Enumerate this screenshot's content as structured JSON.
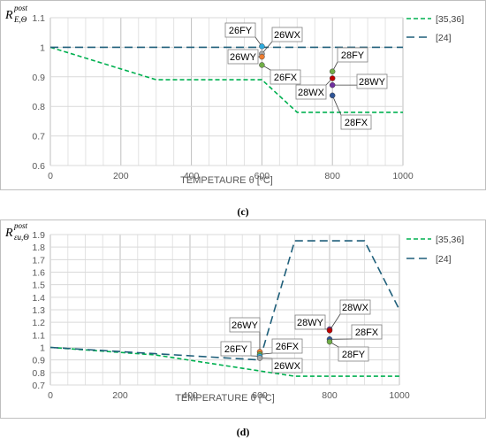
{
  "chart_data": [
    {
      "type": "line",
      "panel": "(c)",
      "ylabel": {
        "main": "R",
        "sup": "post",
        "sub": "E,Θ"
      },
      "xlabel": "TEMPETAURE θ [ºC]",
      "xlim": [
        0,
        1000
      ],
      "ylim": [
        0.6,
        1.1
      ],
      "xticks": [
        0,
        200,
        400,
        600,
        800,
        1000
      ],
      "yticks": [
        0.6,
        0.7,
        0.8,
        0.9,
        1,
        1.1
      ],
      "ytick_labels": [
        "0.6",
        "0.7",
        "0.8",
        "0.9",
        "1",
        "1.1"
      ],
      "series": [
        {
          "name": "[35,36]",
          "color": "#00b050",
          "dash": "green-short",
          "points": [
            [
              0,
              1.0
            ],
            [
              300,
              0.89
            ],
            [
              600,
              0.89
            ],
            [
              700,
              0.78
            ],
            [
              1000,
              0.78
            ]
          ]
        },
        {
          "name": "[24]",
          "color": "#1f5f7a",
          "dash": "blue-long",
          "points": [
            [
              0,
              1.0
            ],
            [
              1000,
              1.0
            ]
          ]
        }
      ],
      "markers": [
        {
          "label": "26FY",
          "x": 600,
          "y": 1.003,
          "color": "#2eaadc"
        },
        {
          "label": "26WX",
          "x": 600,
          "y": 0.978,
          "color": "#a5a5a5"
        },
        {
          "label": "26WY",
          "x": 600,
          "y": 0.968,
          "color": "#ed7d31"
        },
        {
          "label": "26FX",
          "x": 600,
          "y": 0.94,
          "color": "#70ad47"
        },
        {
          "label": "28FY",
          "x": 800,
          "y": 0.918,
          "color": "#70ad47"
        },
        {
          "label": "28WX",
          "x": 800,
          "y": 0.895,
          "color": "#c00000"
        },
        {
          "label": "28WY",
          "x": 800,
          "y": 0.872,
          "color": "#7030a0"
        },
        {
          "label": "28FX",
          "x": 800,
          "y": 0.837,
          "color": "#2f5597"
        }
      ],
      "legend_position": "right",
      "grid": true
    },
    {
      "type": "line",
      "panel": "(d)",
      "ylabel": {
        "main": "R",
        "sup": "post",
        "sub": "εu,Θ"
      },
      "xlabel": "TEMPERATURE θ [ºC]",
      "xlim": [
        0,
        1000
      ],
      "ylim": [
        0.7,
        1.9
      ],
      "xticks": [
        0,
        200,
        400,
        600,
        800,
        1000
      ],
      "yticks": [
        0.7,
        0.8,
        0.9,
        1,
        1.1,
        1.2,
        1.3,
        1.4,
        1.5,
        1.6,
        1.7,
        1.8,
        1.9
      ],
      "ytick_labels": [
        "0.7",
        "0.8",
        "0.9",
        "1",
        "1.1",
        "1.2",
        "1.3",
        "1.4",
        "1.5",
        "1.6",
        "1.7",
        "1.8",
        "1.9"
      ],
      "series": [
        {
          "name": "[35,36]",
          "color": "#00b050",
          "dash": "green-short",
          "points": [
            [
              0,
              1.0
            ],
            [
              300,
              0.94
            ],
            [
              700,
              0.77
            ],
            [
              1000,
              0.77
            ]
          ]
        },
        {
          "name": "[24]",
          "color": "#1f5f7a",
          "dash": "blue-long",
          "points": [
            [
              0,
              1.0
            ],
            [
              300,
              0.95
            ],
            [
              600,
              0.9
            ],
            [
              700,
              1.85
            ],
            [
              900,
              1.85
            ],
            [
              1000,
              1.3
            ]
          ]
        }
      ],
      "markers": [
        {
          "label": "26WY",
          "x": 600,
          "y": 0.965,
          "color": "#ed7d31"
        },
        {
          "label": "26FX",
          "x": 600,
          "y": 0.945,
          "color": "#70ad47"
        },
        {
          "label": "26FY",
          "x": 600,
          "y": 0.93,
          "color": "#2eaadc"
        },
        {
          "label": "26WX",
          "x": 600,
          "y": 0.915,
          "color": "#a5a5a5"
        },
        {
          "label": "28WY",
          "x": 800,
          "y": 1.145,
          "color": "#7030a0"
        },
        {
          "label": "28WX",
          "x": 800,
          "y": 1.135,
          "color": "#c00000"
        },
        {
          "label": "28FX",
          "x": 800,
          "y": 1.065,
          "color": "#2f5597"
        },
        {
          "label": "28FY",
          "x": 800,
          "y": 1.045,
          "color": "#70ad47"
        }
      ],
      "legend_position": "right",
      "grid": true
    }
  ],
  "captions": [
    "(c)",
    "(d)"
  ]
}
